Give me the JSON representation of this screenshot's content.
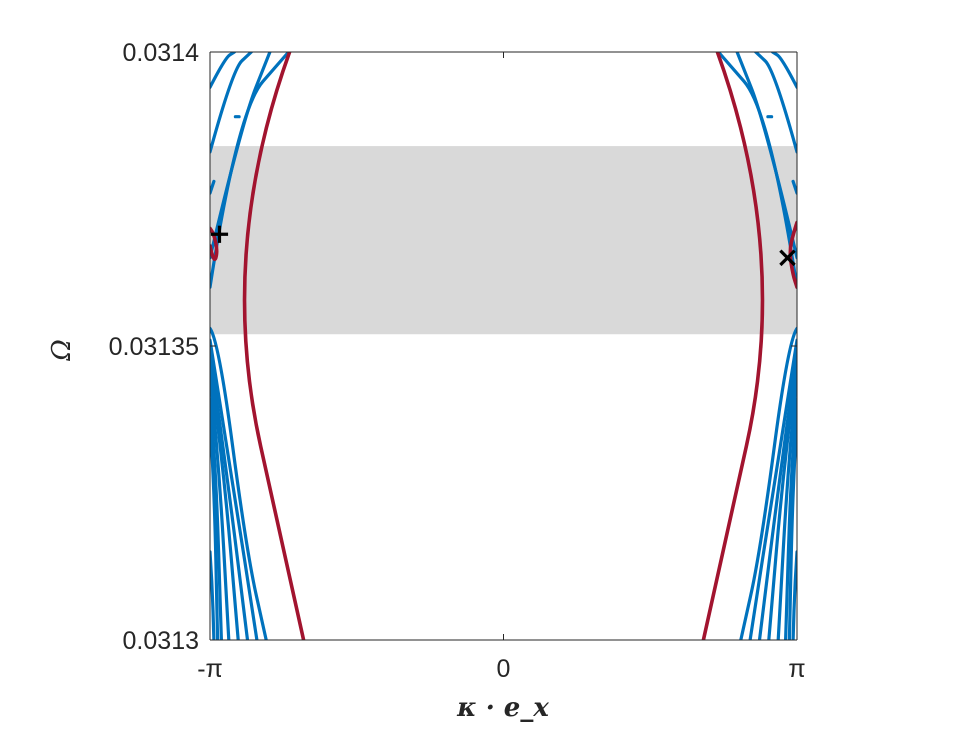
{
  "chart_data": {
    "type": "line",
    "title": "",
    "xlabel": "κ · e_x",
    "ylabel": "Ω",
    "xlim": [
      -3.14159,
      3.14159
    ],
    "ylim": [
      0.0313,
      0.0314
    ],
    "x_ticks": [
      {
        "value": -3.14159,
        "label": "-π"
      },
      {
        "value": 0,
        "label": "0"
      },
      {
        "value": 3.14159,
        "label": "π"
      }
    ],
    "y_ticks": [
      {
        "value": 0.0313,
        "label": "0.0313"
      },
      {
        "value": 0.03135,
        "label": "0.03135"
      },
      {
        "value": 0.0314,
        "label": "0.0314"
      }
    ],
    "grid": false,
    "band_gap": {
      "y_range": [
        0.031352,
        0.031384
      ],
      "color": "#d9d9d9"
    },
    "colors": {
      "bulk": "#0072bd",
      "edge": "#a2142f",
      "marker": "#000000",
      "axis": "#262626"
    },
    "bulk_left": [
      {
        "points": [
          [
            -3.14159,
            0.03136
          ],
          [
            -2.85,
            0.03139
          ],
          [
            -2.3,
            0.0314
          ]
        ]
      },
      {
        "points": [
          [
            -3.14159,
            0.031365
          ],
          [
            -2.8,
            0.031388
          ],
          [
            -2.5,
            0.0314
          ]
        ]
      },
      {
        "points": [
          [
            -3.14159,
            0.031383
          ],
          [
            -2.9,
            0.031397
          ],
          [
            -2.7,
            0.0314
          ]
        ]
      },
      {
        "points": [
          [
            -3.14159,
            0.031394
          ],
          [
            -2.98,
            0.031399
          ],
          [
            -2.88,
            0.0314
          ]
        ]
      },
      {
        "points": [
          [
            -3.14159,
            0.031376
          ],
          [
            -3.1,
            0.031378
          ]
        ]
      },
      {
        "points": [
          [
            -2.87,
            0.031389
          ],
          [
            -2.83,
            0.031389
          ]
        ]
      },
      {
        "points": [
          [
            -3.14159,
            0.031353
          ],
          [
            -3.05,
            0.031351
          ],
          [
            -2.75,
            0.031315
          ],
          [
            -2.54,
            0.0313
          ]
        ]
      },
      {
        "points": [
          [
            -3.14159,
            0.031351
          ],
          [
            -2.9,
            0.031327
          ],
          [
            -2.64,
            0.0313
          ]
        ]
      },
      {
        "points": [
          [
            -3.14159,
            0.031349
          ],
          [
            -2.95,
            0.031327
          ],
          [
            -2.74,
            0.0313
          ]
        ]
      },
      {
        "points": [
          [
            -3.14159,
            0.031347
          ],
          [
            -3.0,
            0.03133
          ],
          [
            -2.84,
            0.0313
          ]
        ]
      },
      {
        "points": [
          [
            -3.14159,
            0.031345
          ],
          [
            -3.05,
            0.031331
          ],
          [
            -2.94,
            0.0313
          ]
        ]
      },
      {
        "points": [
          [
            -3.14159,
            0.031341
          ],
          [
            -3.08,
            0.03133
          ],
          [
            -3.02,
            0.0313
          ]
        ]
      },
      {
        "points": [
          [
            -3.14159,
            0.031337
          ],
          [
            -3.1,
            0.031328
          ],
          [
            -3.06,
            0.0313
          ]
        ]
      },
      {
        "points": [
          [
            -3.14159,
            0.031315
          ],
          [
            -3.12,
            0.03131
          ],
          [
            -3.1,
            0.0313
          ]
        ]
      }
    ],
    "bulk_right": [
      {
        "points": [
          [
            3.14159,
            0.03136
          ],
          [
            2.85,
            0.03139
          ],
          [
            2.3,
            0.0314
          ]
        ]
      },
      {
        "points": [
          [
            3.14159,
            0.031365
          ],
          [
            2.8,
            0.031388
          ],
          [
            2.5,
            0.0314
          ]
        ]
      },
      {
        "points": [
          [
            3.14159,
            0.031383
          ],
          [
            2.9,
            0.031397
          ],
          [
            2.7,
            0.0314
          ]
        ]
      },
      {
        "points": [
          [
            3.14159,
            0.031394
          ],
          [
            2.98,
            0.031399
          ],
          [
            2.88,
            0.0314
          ]
        ]
      },
      {
        "points": [
          [
            3.14159,
            0.031376
          ],
          [
            3.1,
            0.031378
          ]
        ]
      },
      {
        "points": [
          [
            2.87,
            0.031389
          ],
          [
            2.83,
            0.031389
          ]
        ]
      },
      {
        "points": [
          [
            3.14159,
            0.031353
          ],
          [
            3.05,
            0.031351
          ],
          [
            2.75,
            0.031315
          ],
          [
            2.54,
            0.0313
          ]
        ]
      },
      {
        "points": [
          [
            3.14159,
            0.031351
          ],
          [
            2.9,
            0.031327
          ],
          [
            2.64,
            0.0313
          ]
        ]
      },
      {
        "points": [
          [
            3.14159,
            0.031349
          ],
          [
            2.95,
            0.031327
          ],
          [
            2.74,
            0.0313
          ]
        ]
      },
      {
        "points": [
          [
            3.14159,
            0.031347
          ],
          [
            3.0,
            0.03133
          ],
          [
            2.84,
            0.0313
          ]
        ]
      },
      {
        "points": [
          [
            3.14159,
            0.031345
          ],
          [
            3.05,
            0.031331
          ],
          [
            2.94,
            0.0313
          ]
        ]
      },
      {
        "points": [
          [
            3.14159,
            0.031341
          ],
          [
            3.08,
            0.03133
          ],
          [
            3.02,
            0.0313
          ]
        ]
      },
      {
        "points": [
          [
            3.14159,
            0.031337
          ],
          [
            3.1,
            0.031328
          ],
          [
            3.06,
            0.0313
          ]
        ]
      },
      {
        "points": [
          [
            3.14159,
            0.031315
          ],
          [
            3.12,
            0.03131
          ],
          [
            3.1,
            0.0313
          ]
        ]
      }
    ],
    "edge_left": [
      {
        "points": [
          [
            -2.29,
            0.0314
          ],
          [
            -3.06,
            0.031366
          ],
          [
            -2.14,
            0.0313
          ]
        ]
      },
      {
        "points": [
          [
            -3.14159,
            0.031367
          ],
          [
            -3.1,
            0.031364
          ],
          [
            -3.06,
            0.031366
          ],
          [
            -3.1,
            0.031369
          ],
          [
            -3.14159,
            0.03137
          ]
        ]
      }
    ],
    "edge_right": [
      {
        "points": [
          [
            2.29,
            0.0314
          ],
          [
            3.06,
            0.031366
          ],
          [
            2.14,
            0.0313
          ]
        ]
      },
      {
        "points": [
          [
            3.14159,
            0.031371
          ],
          [
            3.1,
            0.031369
          ],
          [
            3.06,
            0.031366
          ],
          [
            3.1,
            0.031362
          ],
          [
            3.14159,
            0.03136
          ]
        ]
      }
    ],
    "markers": [
      {
        "symbol": "+",
        "x": -3.04,
        "y": 0.031369
      },
      {
        "symbol": "x",
        "x": 3.04,
        "y": 0.031365
      }
    ]
  }
}
